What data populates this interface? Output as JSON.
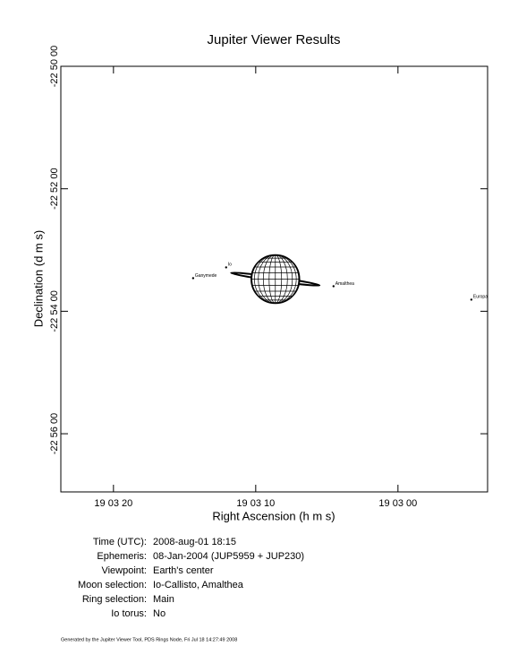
{
  "chart_data": {
    "type": "scatter",
    "title": "Jupiter Viewer Results",
    "x_label": "Right Ascension (h m s)",
    "y_label": "Declination (d m s)",
    "xlim": [
      203.7,
      173.7
    ],
    "ylim": [
      -82617,
      -82200
    ],
    "xticks": [
      {
        "value": 200,
        "label": "19 03 20"
      },
      {
        "value": 190,
        "label": "19 03 10"
      },
      {
        "value": 180,
        "label": "19 03 00"
      }
    ],
    "yticks": [
      {
        "value": -82200,
        "label": "-22 50 00"
      },
      {
        "value": -82320,
        "label": "-22 52 00"
      },
      {
        "value": -82440,
        "label": "-22 54 00"
      },
      {
        "value": -82560,
        "label": "-22 56 00"
      }
    ],
    "moons": {
      "names": [
        "Ganymede",
        "Io",
        "Amalthea",
        "Europa"
      ],
      "x": [
        194.4,
        192.08,
        184.53,
        174.84
      ],
      "y": [
        -82407.6,
        -82397,
        -82415.5,
        -82428.6
      ]
    },
    "planet": {
      "x": 188.62,
      "y": -82408.5,
      "radius": 23.7
    }
  },
  "info": [
    {
      "label": "Time (UTC):",
      "value": "2008-aug-01 18:15"
    },
    {
      "label": "Ephemeris:",
      "value": "08-Jan-2004 (JUP5959 + JUP230)"
    },
    {
      "label": "Viewpoint:",
      "value": "Earth's center"
    },
    {
      "label": "Moon selection:",
      "value": "Io-Callisto, Amalthea"
    },
    {
      "label": "Ring selection:",
      "value": "Main"
    },
    {
      "label": "Io torus:",
      "value": "No"
    }
  ],
  "footer": "Generated by the Jupiter Viewer Tool, PDS Rings Node, Fri Jul 18 14:27:49 2008"
}
